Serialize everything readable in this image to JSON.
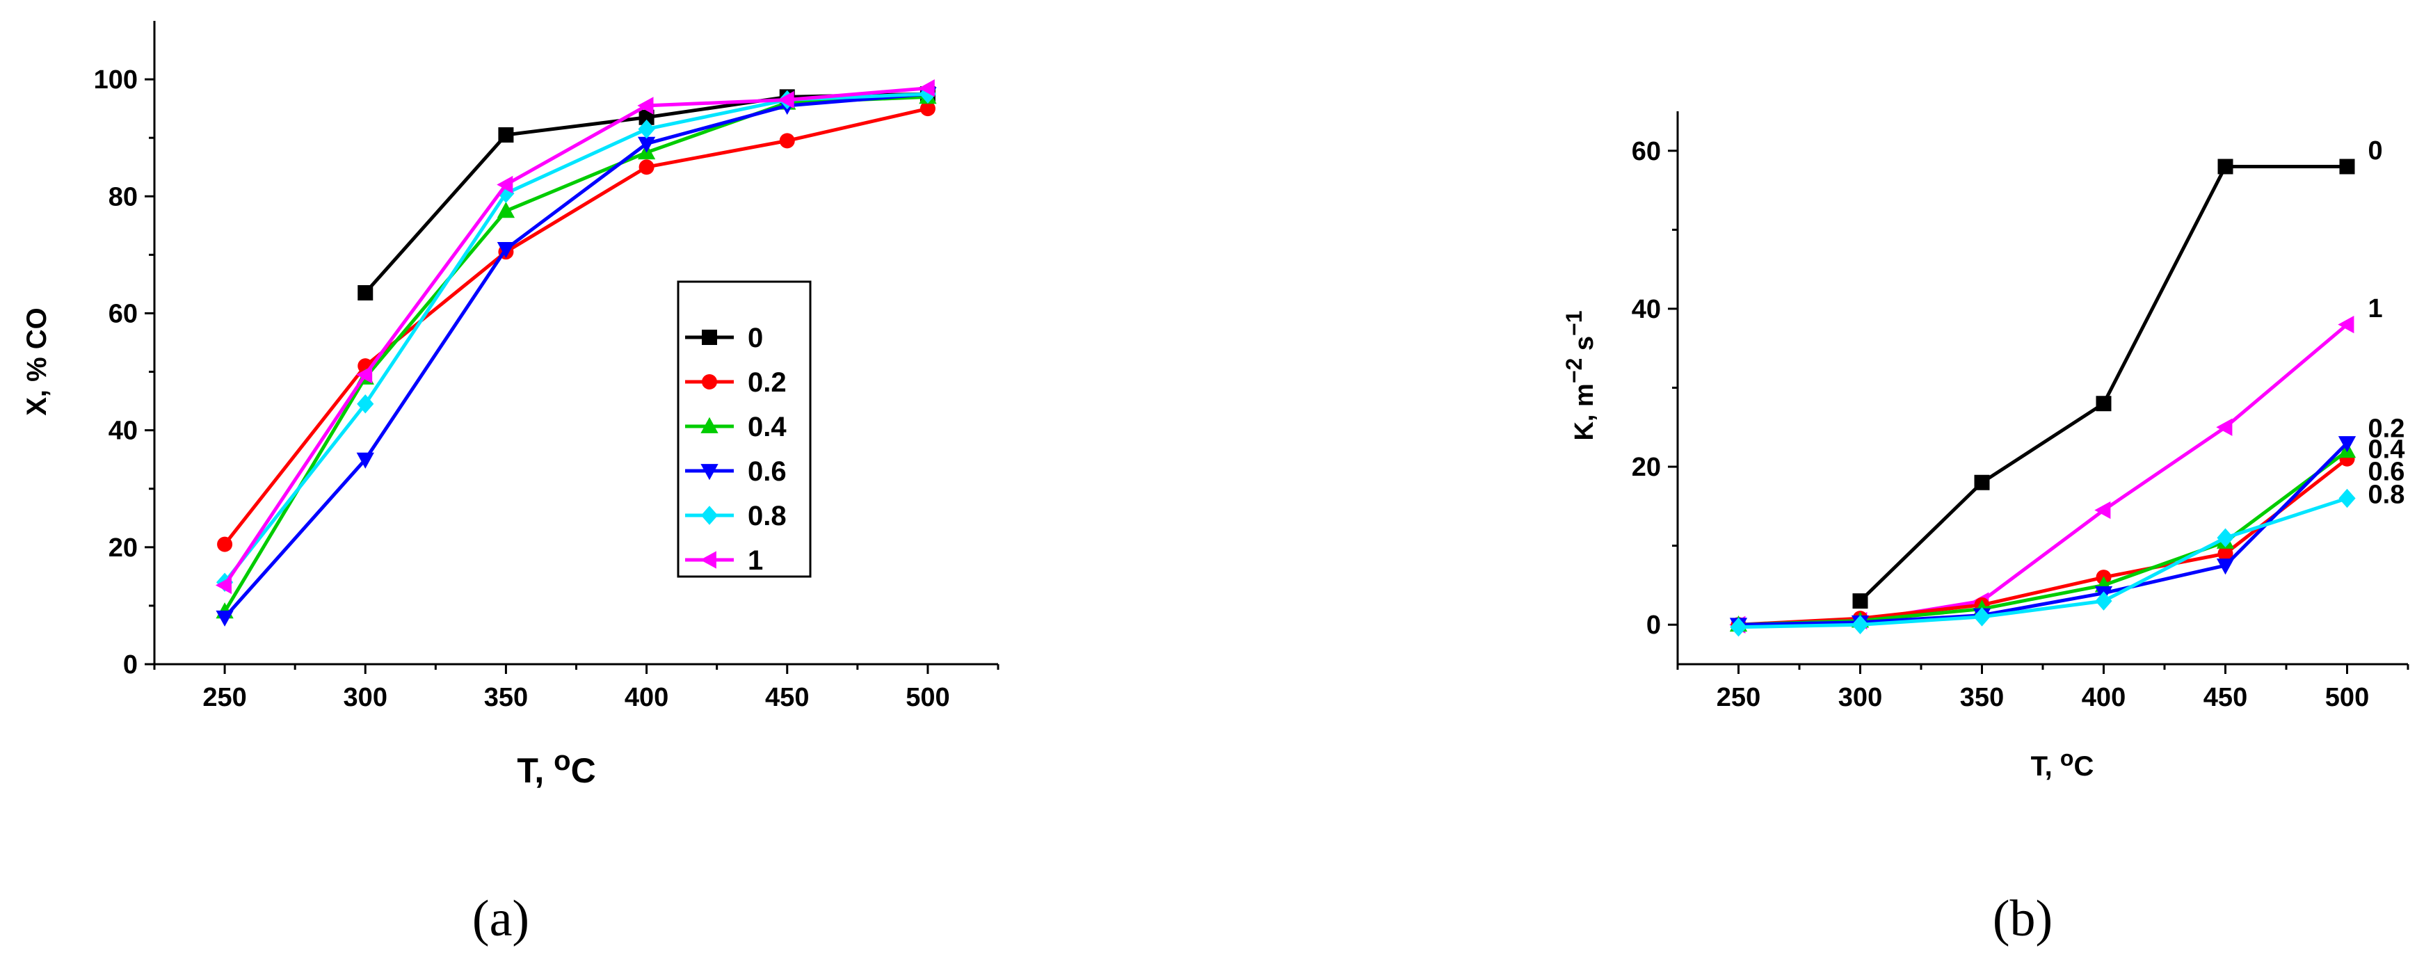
{
  "chart_data": [
    {
      "type": "line",
      "panel_label": "(a)",
      "xlabel": "T, ",
      "xlabel_sup": "o",
      "xlabel_tail": "C",
      "ylabel": "X, % CO",
      "x": [
        250,
        300,
        350,
        400,
        450,
        500
      ],
      "xlim": [
        225,
        525
      ],
      "ylim": [
        0,
        110
      ],
      "xticks": [
        250,
        300,
        350,
        400,
        450,
        500
      ],
      "yticks": [
        0,
        20,
        40,
        60,
        80,
        100
      ],
      "legend_position": "center-right",
      "series": [
        {
          "name": "0",
          "color": "#000000",
          "marker": "square",
          "values": [
            null,
            63.5,
            90.5,
            93.5,
            97,
            97.5
          ]
        },
        {
          "name": "0.2",
          "color": "#ff0000",
          "marker": "circle",
          "values": [
            20.5,
            51,
            70.5,
            85,
            89.5,
            95
          ]
        },
        {
          "name": "0.4",
          "color": "#00cc00",
          "marker": "triangle-up",
          "values": [
            9,
            49,
            77.5,
            87.5,
            96,
            97
          ]
        },
        {
          "name": "0.6",
          "color": "#0000ff",
          "marker": "triangle-down",
          "values": [
            8,
            35,
            71,
            89,
            95.5,
            97.5
          ]
        },
        {
          "name": "0.8",
          "color": "#00e5ff",
          "marker": "diamond",
          "values": [
            14,
            44.5,
            80.5,
            91.5,
            96.5,
            97.5
          ]
        },
        {
          "name": "1",
          "color": "#ff00ff",
          "marker": "triangle-left",
          "values": [
            13.5,
            49.5,
            82,
            95.5,
            96.5,
            98.5
          ]
        }
      ]
    },
    {
      "type": "line",
      "panel_label": "(b)",
      "xlabel": "T, ",
      "xlabel_sup": "o",
      "xlabel_tail": "C",
      "ylabel": "K, m",
      "ylabel_sup1": "−2",
      "ylabel_mid": " s",
      "ylabel_sup2": "−1",
      "x": [
        250,
        300,
        350,
        400,
        450,
        500
      ],
      "xlim": [
        225,
        525
      ],
      "ylim": [
        -5,
        65
      ],
      "xticks": [
        250,
        300,
        350,
        400,
        450,
        500
      ],
      "yticks": [
        0,
        20,
        40,
        60
      ],
      "series": [
        {
          "name": "0",
          "color": "#000000",
          "marker": "square",
          "values": [
            null,
            3,
            18,
            28,
            58,
            58
          ]
        },
        {
          "name": "1",
          "color": "#ff00ff",
          "marker": "triangle-left",
          "values": [
            0,
            0.5,
            3,
            14.5,
            25,
            38
          ]
        },
        {
          "name": "0.2",
          "color": "#ff0000",
          "marker": "circle",
          "values": [
            0,
            0.8,
            2.5,
            6,
            9,
            21
          ]
        },
        {
          "name": "0.4",
          "color": "#00cc00",
          "marker": "triangle-up",
          "values": [
            0,
            0.5,
            2,
            5,
            10.5,
            22
          ]
        },
        {
          "name": "0.6",
          "color": "#0000ff",
          "marker": "triangle-down",
          "values": [
            0,
            0.3,
            1.2,
            4,
            7.5,
            23
          ]
        },
        {
          "name": "0.8",
          "color": "#00e5ff",
          "marker": "diamond",
          "values": [
            -0.3,
            0,
            1,
            3,
            11,
            16
          ]
        }
      ]
    }
  ]
}
